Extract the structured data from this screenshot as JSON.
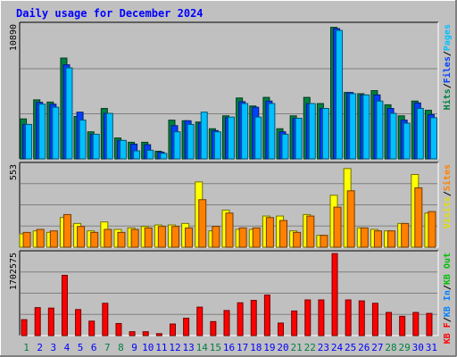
{
  "chart_data": {
    "type": "bar",
    "title": "Daily usage for December 2024",
    "categories": [
      "1",
      "2",
      "3",
      "4",
      "5",
      "6",
      "7",
      "8",
      "9",
      "10",
      "11",
      "12",
      "13",
      "14",
      "15",
      "16",
      "17",
      "18",
      "19",
      "20",
      "21",
      "22",
      "23",
      "24",
      "25",
      "26",
      "27",
      "28",
      "29",
      "30",
      "31"
    ],
    "weekend_days": [
      "1",
      "7",
      "8",
      "14",
      "15",
      "21",
      "22",
      "28",
      "29"
    ],
    "panels": [
      {
        "name": "top",
        "ymax_label": "10890",
        "ymax": 10890,
        "legend": [
          {
            "text": "Hits",
            "color": "#008040"
          },
          {
            "text": "/",
            "color": "#000000"
          },
          {
            "text": "Files",
            "color": "#0040ff"
          },
          {
            "text": "/",
            "color": "#000000"
          },
          {
            "text": "Pages",
            "color": "#00c0ff"
          }
        ],
        "series": [
          {
            "name": "Hits",
            "color": "#008040",
            "values": [
              3250,
              4800,
              4620,
              8200,
              3450,
              2200,
              4100,
              1700,
              1350,
              1350,
              620,
              3150,
              3100,
              3000,
              2450,
              3500,
              4950,
              4300,
              5000,
              2450,
              3500,
              5000,
              4500,
              10700,
              5400,
              5300,
              5550,
              4400,
              3500,
              4700,
              3950
            ]
          },
          {
            "name": "Files",
            "color": "#0040ff",
            "values": [
              2800,
              4600,
              4450,
              7650,
              3800,
              2000,
              3700,
              1500,
              1200,
              1150,
              550,
              2700,
              3100,
              2900,
              2300,
              3350,
              4650,
              4200,
              4700,
              2200,
              3300,
              4500,
              4100,
              10600,
              5400,
              5200,
              5200,
              4100,
              3150,
              4550,
              3600
            ]
          },
          {
            "name": "Pages",
            "color": "#00c0ff",
            "values": [
              2800,
              4450,
              4200,
              7400,
              3150,
              2000,
              3700,
              1500,
              650,
              700,
              450,
              2200,
              2800,
              3800,
              2200,
              3400,
              4500,
              3400,
              4500,
              2000,
              3300,
              4500,
              4100,
              10450,
              5300,
              5200,
              4700,
              3700,
              2900,
              4100,
              3350
            ]
          }
        ]
      },
      {
        "name": "middle",
        "ymax_label": "553",
        "ymax": 553,
        "legend": [
          {
            "text": "Visits",
            "color": "#e0e000"
          },
          {
            "text": "/",
            "color": "#000000"
          },
          {
            "text": "Sites",
            "color": "#ff8000"
          }
        ],
        "series": [
          {
            "name": "Visits",
            "color": "#ffff00",
            "values": [
              90,
              110,
              100,
              200,
              160,
              110,
              170,
              120,
              130,
              140,
              150,
              150,
              160,
              440,
              110,
              250,
              120,
              120,
              210,
              210,
              110,
              220,
              80,
              350,
              530,
              130,
              120,
              110,
              160,
              490,
              230
            ]
          },
          {
            "name": "Sites",
            "color": "#ff8000",
            "values": [
              100,
              120,
              110,
              220,
              140,
              100,
              120,
              100,
              120,
              130,
              140,
              140,
              130,
              320,
              140,
              230,
              130,
              130,
              200,
              180,
              100,
              210,
              80,
              270,
              380,
              130,
              110,
              110,
              160,
              400,
              240
            ]
          }
        ]
      },
      {
        "name": "bottom",
        "ymax_label": "1702575",
        "ymax": 1702575,
        "legend": [
          {
            "text": "KB F",
            "color": "#ff0000"
          },
          {
            "text": "/",
            "color": "#000000"
          },
          {
            "text": "KB In",
            "color": "#0080ff"
          },
          {
            "text": "/",
            "color": "#000000"
          },
          {
            "text": "KB Out",
            "color": "#00c000"
          }
        ],
        "series": [
          {
            "name": "KB F",
            "color": "#ff0000",
            "values": [
              330000,
              580000,
              570000,
              1250000,
              540000,
              300000,
              670000,
              250000,
              80000,
              80000,
              40000,
              240000,
              360000,
              590000,
              290000,
              520000,
              680000,
              730000,
              840000,
              260000,
              510000,
              740000,
              740000,
              1700000,
              740000,
              720000,
              670000,
              480000,
              400000,
              480000,
              460000
            ]
          }
        ]
      }
    ]
  },
  "colors": {
    "background": "#c0c0c0",
    "plot_background": "#c0c0c0",
    "gridline": "#808080",
    "title": "#0000ff",
    "weekday_label": "#0000ff",
    "weekend_label": "#008040"
  }
}
